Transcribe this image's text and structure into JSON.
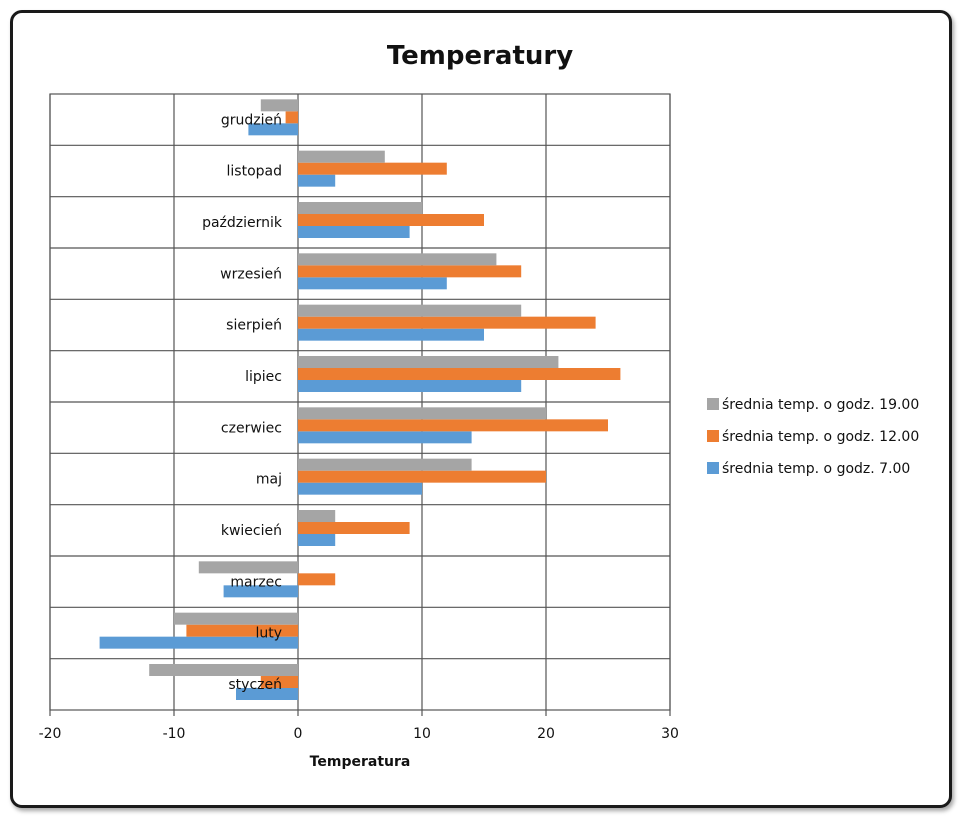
{
  "chart_data": {
    "type": "bar",
    "orientation": "horizontal",
    "title": "Temperatury",
    "xlabel": "Temperatura",
    "ylabel": "",
    "xlim": [
      -20,
      30
    ],
    "x_ticks": [
      "-20",
      "-10",
      "0",
      "10",
      "20",
      "30"
    ],
    "grid": true,
    "legend_position": "right",
    "categories": [
      "styczeń",
      "luty",
      "marzec",
      "kwiecień",
      "maj",
      "czerwiec",
      "lipiec",
      "sierpień",
      "wrzesień",
      "październik",
      "listopad",
      "grudzień"
    ],
    "series": [
      {
        "name": "średnia temp. o godz. 7.00",
        "color": "#5b9bd5",
        "values": [
          -5,
          -16,
          -6,
          3,
          10,
          14,
          18,
          15,
          12,
          9,
          3,
          -4
        ]
      },
      {
        "name": "średnia temp. o godz. 12.00",
        "color": "#ed7d31",
        "values": [
          -3,
          -9,
          3,
          9,
          20,
          25,
          26,
          24,
          18,
          15,
          12,
          -1
        ]
      },
      {
        "name": "średnia temp. o godz. 19.00",
        "color": "#a5a5a5",
        "values": [
          -12,
          -10,
          -8,
          3,
          14,
          20,
          21,
          18,
          16,
          10,
          7,
          -3
        ]
      }
    ]
  }
}
